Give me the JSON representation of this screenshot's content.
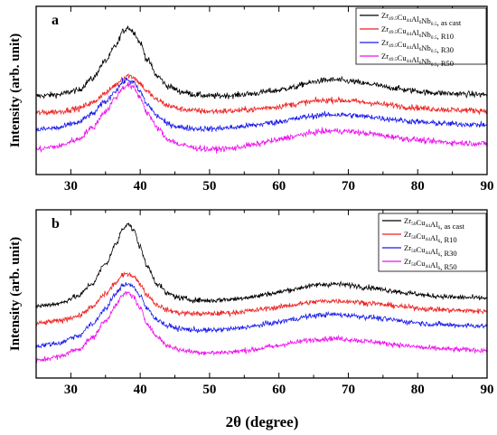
{
  "xlabel_main": "2θ (degree)",
  "chart_data": [
    {
      "type": "line",
      "panel_label": "a",
      "ylabel": "Intensity (arb. unit)",
      "xlim": [
        25,
        90
      ],
      "xticks": [
        30,
        40,
        50,
        60,
        70,
        80,
        90
      ],
      "yticks": [],
      "grid": false,
      "legend_position": "top-right",
      "series": [
        {
          "name": "Zr49.5Cu44Al6Nb0.5, as cast",
          "legend_parts": [
            [
              "Zr",
              ""
            ],
            [
              "49.5",
              "sub"
            ],
            [
              "Cu",
              ""
            ],
            [
              "44",
              "sub"
            ],
            [
              "Al",
              ""
            ],
            [
              "6",
              "sub"
            ],
            [
              "Nb",
              ""
            ],
            [
              "0.5",
              "sub"
            ],
            [
              ", as cast",
              ""
            ]
          ],
          "color": "#000000",
          "x": [
            25,
            28,
            31,
            33,
            35,
            36.5,
            37.5,
            38.2,
            39,
            40,
            41,
            42.5,
            44,
            46,
            48,
            50,
            53,
            56,
            59,
            62,
            64,
            66,
            68,
            70,
            73,
            76,
            79,
            82,
            86,
            90
          ],
          "y": [
            96,
            96.5,
            98,
            102,
            108.5,
            114,
            119,
            120.5,
            119,
            115,
            109,
            103,
            99.5,
            97.5,
            96.5,
            96,
            96.2,
            96.8,
            97.8,
            99,
            100.5,
            101.5,
            101.8,
            101.3,
            100.3,
            99,
            98,
            97.2,
            96.8,
            96.5
          ]
        },
        {
          "name": "Zr49.5Cu44Al6Nb0.5, R10",
          "legend_parts": [
            [
              "Zr",
              ""
            ],
            [
              "49.5",
              "sub"
            ],
            [
              "Cu",
              ""
            ],
            [
              "44",
              "sub"
            ],
            [
              "Al",
              ""
            ],
            [
              "6",
              "sub"
            ],
            [
              "Nb",
              ""
            ],
            [
              "0.5",
              "sub"
            ],
            [
              ", R10",
              ""
            ]
          ],
          "color": "#ee2222",
          "x": [
            25,
            28,
            31,
            33,
            35,
            36.5,
            37.5,
            38.2,
            39,
            40,
            41,
            42.5,
            44,
            46,
            48,
            50,
            53,
            56,
            59,
            62,
            64,
            66,
            68,
            70,
            73,
            76,
            79,
            82,
            86,
            90
          ],
          "y": [
            90,
            90.4,
            91.5,
            93.5,
            97,
            100,
            102.5,
            103.3,
            102.8,
            100.5,
            97.5,
            94.5,
            92.6,
            91.3,
            90.8,
            90.5,
            90.7,
            91.2,
            92,
            93,
            93.8,
            94.4,
            94.6,
            94.3,
            93.6,
            92.8,
            92,
            91.4,
            91,
            90.8
          ]
        },
        {
          "name": "Zr49.5Cu44Al6Nb0.5, R30",
          "legend_parts": [
            [
              "Zr",
              ""
            ],
            [
              "49.5",
              "sub"
            ],
            [
              "Cu",
              ""
            ],
            [
              "44",
              "sub"
            ],
            [
              "Al",
              ""
            ],
            [
              "6",
              "sub"
            ],
            [
              "Nb",
              ""
            ],
            [
              "0.5",
              "sub"
            ],
            [
              ", R30",
              ""
            ]
          ],
          "color": "#1a1aee",
          "x": [
            25,
            28,
            31,
            33,
            35,
            36.5,
            37.5,
            38.2,
            39,
            40,
            41,
            42.5,
            44,
            46,
            48,
            50,
            53,
            56,
            59,
            62,
            64,
            66,
            68,
            70,
            73,
            76,
            79,
            82,
            86,
            90
          ],
          "y": [
            84,
            84.6,
            86.5,
            89.5,
            94,
            98,
            101,
            101.8,
            100.8,
            97.5,
            93,
            88.8,
            86,
            84.8,
            84.4,
            84.3,
            84.7,
            85.5,
            86.5,
            87.7,
            88.6,
            89.2,
            89.4,
            89.2,
            88.6,
            87.8,
            87,
            86.4,
            86,
            85.7
          ]
        },
        {
          "name": "Zr49.5Cu44Al6Nb0.5, R50",
          "legend_parts": [
            [
              "Zr",
              ""
            ],
            [
              "49.5",
              "sub"
            ],
            [
              "Cu",
              ""
            ],
            [
              "44",
              "sub"
            ],
            [
              "Al",
              ""
            ],
            [
              "6",
              "sub"
            ],
            [
              "Nb",
              ""
            ],
            [
              "0.5",
              "sub"
            ],
            [
              ", R50",
              ""
            ]
          ],
          "color": "#ee11ee",
          "x": [
            25,
            28,
            31,
            33,
            35,
            36.5,
            37.5,
            38.2,
            39,
            40,
            41,
            42.5,
            44,
            46,
            48,
            50,
            53,
            56,
            59,
            62,
            64,
            66,
            68,
            70,
            73,
            76,
            79,
            82,
            86,
            90
          ],
          "y": [
            77,
            78,
            80.5,
            84.5,
            90.5,
            95.5,
            99,
            100,
            99,
            95.5,
            90,
            84.5,
            80.5,
            78.5,
            77.5,
            77,
            77.3,
            78.5,
            80,
            81.5,
            82.6,
            83.3,
            83.6,
            83.4,
            82.6,
            81.6,
            80.6,
            79.8,
            79.3,
            79
          ]
        }
      ]
    },
    {
      "type": "line",
      "panel_label": "b",
      "ylabel": "Intensity (arb. unit)",
      "xlim": [
        25,
        90
      ],
      "xticks": [
        30,
        40,
        50,
        60,
        70,
        80,
        90
      ],
      "yticks": [],
      "grid": false,
      "legend_position": "top-right",
      "series": [
        {
          "name": "Zr50Cu44Al6, as cast",
          "legend_parts": [
            [
              "Zr",
              ""
            ],
            [
              "50",
              "sub"
            ],
            [
              "Cu",
              ""
            ],
            [
              "44",
              "sub"
            ],
            [
              "Al",
              ""
            ],
            [
              "6",
              "sub"
            ],
            [
              ", as cast",
              ""
            ]
          ],
          "color": "#000000",
          "x": [
            25,
            28,
            31,
            33,
            35,
            36.5,
            37.5,
            38.2,
            39,
            40,
            41,
            42.5,
            44,
            46,
            48,
            50,
            53,
            56,
            59,
            62,
            64,
            66,
            68,
            70,
            73,
            76,
            79,
            82,
            86,
            90
          ],
          "y": [
            95,
            96,
            99,
            104,
            112,
            120,
            126.5,
            128.5,
            126,
            119,
            111,
            104,
            100,
            98.2,
            97.5,
            97.3,
            97.8,
            98.8,
            100.2,
            101.8,
            103,
            103.8,
            104,
            103.6,
            102.6,
            101.4,
            100.2,
            99.2,
            98.6,
            98.3
          ]
        },
        {
          "name": "Zr50Cu44Al6, R10",
          "legend_parts": [
            [
              "Zr",
              ""
            ],
            [
              "50",
              "sub"
            ],
            [
              "Cu",
              ""
            ],
            [
              "44",
              "sub"
            ],
            [
              "Al",
              ""
            ],
            [
              "6",
              "sub"
            ],
            [
              ", R10",
              ""
            ]
          ],
          "color": "#ee2222",
          "x": [
            25,
            28,
            31,
            33,
            35,
            36.5,
            37.5,
            38.2,
            39,
            40,
            41,
            42.5,
            44,
            46,
            48,
            50,
            53,
            56,
            59,
            62,
            64,
            66,
            68,
            70,
            73,
            76,
            79,
            82,
            86,
            90
          ],
          "y": [
            88,
            89,
            91,
            94.5,
            100,
            104.5,
            107.5,
            108.3,
            107.3,
            104,
            99.5,
            95.5,
            93.3,
            92.3,
            92,
            92,
            92.4,
            93.2,
            94.3,
            95.5,
            96.4,
            97,
            97.2,
            97,
            96.3,
            95.4,
            94.5,
            93.8,
            93.3,
            93
          ]
        },
        {
          "name": "Zr50Cu44Al6, R30",
          "legend_parts": [
            [
              "Zr",
              ""
            ],
            [
              "50",
              "sub"
            ],
            [
              "Cu",
              ""
            ],
            [
              "44",
              "sub"
            ],
            [
              "Al",
              ""
            ],
            [
              "6",
              "sub"
            ],
            [
              ", R30",
              ""
            ]
          ],
          "color": "#1a1aee",
          "x": [
            25,
            28,
            31,
            33,
            35,
            36.5,
            37.5,
            38.2,
            39,
            40,
            41,
            42.5,
            44,
            46,
            48,
            50,
            53,
            56,
            59,
            62,
            64,
            66,
            68,
            70,
            73,
            76,
            79,
            82,
            86,
            90
          ],
          "y": [
            79,
            80,
            83,
            87.5,
            94,
            100,
            103.5,
            104.3,
            103,
            99,
            94,
            89.5,
            87,
            85.8,
            85.4,
            85.3,
            85.8,
            86.8,
            88.2,
            89.7,
            90.8,
            91.5,
            91.7,
            91.4,
            90.6,
            89.6,
            88.6,
            87.8,
            87.3,
            87
          ]
        },
        {
          "name": "Zr50Cu44Al6, R50",
          "legend_parts": [
            [
              "Zr",
              ""
            ],
            [
              "50",
              "sub"
            ],
            [
              "Cu",
              ""
            ],
            [
              "44",
              "sub"
            ],
            [
              "Al",
              ""
            ],
            [
              "6",
              "sub"
            ],
            [
              ", R50",
              ""
            ]
          ],
          "color": "#ee11ee",
          "x": [
            25,
            28,
            31,
            33,
            35,
            36.5,
            37.5,
            38.2,
            39,
            40,
            41,
            42.5,
            44,
            46,
            48,
            50,
            53,
            56,
            59,
            62,
            64,
            66,
            68,
            70,
            73,
            76,
            79,
            82,
            86,
            90
          ],
          "y": [
            73,
            74.5,
            77.5,
            82,
            89,
            95.5,
            99.5,
            100.5,
            99,
            94,
            88,
            82.5,
            79,
            77.2,
            76.5,
            76.2,
            76.5,
            77.4,
            78.7,
            80.2,
            81.2,
            81.8,
            82,
            81.6,
            80.8,
            79.8,
            78.8,
            78,
            77.5,
            77.2
          ]
        }
      ]
    }
  ]
}
